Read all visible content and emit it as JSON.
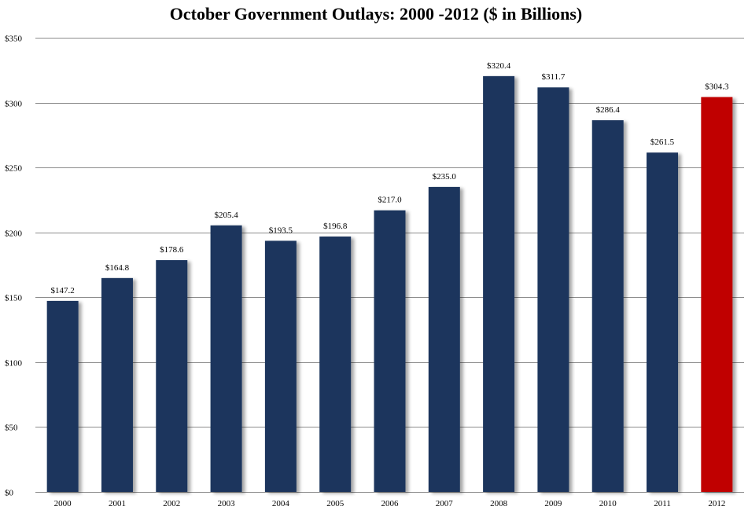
{
  "chart_data": {
    "type": "bar",
    "title": "October Government Outlays: 2000 -2012 ($ in Billions)",
    "xlabel": "",
    "ylabel": "",
    "ylim": [
      0,
      350
    ],
    "ytick_step": 50,
    "ytick_labels": [
      "$0",
      "$50",
      "$100",
      "$150",
      "$200",
      "$250",
      "$300",
      "$350"
    ],
    "grid": true,
    "categories": [
      "2000",
      "2001",
      "2002",
      "2003",
      "2004",
      "2005",
      "2006",
      "2007",
      "2008",
      "2009",
      "2010",
      "2011",
      "2012"
    ],
    "values": [
      147.2,
      164.8,
      178.6,
      205.4,
      193.5,
      196.8,
      217.0,
      235.0,
      320.4,
      311.7,
      286.4,
      261.5,
      304.3
    ],
    "data_labels": [
      "$147.2",
      "$164.8",
      "$178.6",
      "$205.4",
      "$193.5",
      "$196.8",
      "$217.0",
      "$235.0",
      "$320.4",
      "$311.7",
      "$286.4",
      "$261.5",
      "$304.3"
    ],
    "colors": [
      "#1b365d",
      "#1b365d",
      "#1b365d",
      "#1b365d",
      "#1b365d",
      "#1b365d",
      "#1b365d",
      "#1b365d",
      "#1b365d",
      "#1b365d",
      "#1b365d",
      "#1b365d",
      "#c00000"
    ]
  }
}
